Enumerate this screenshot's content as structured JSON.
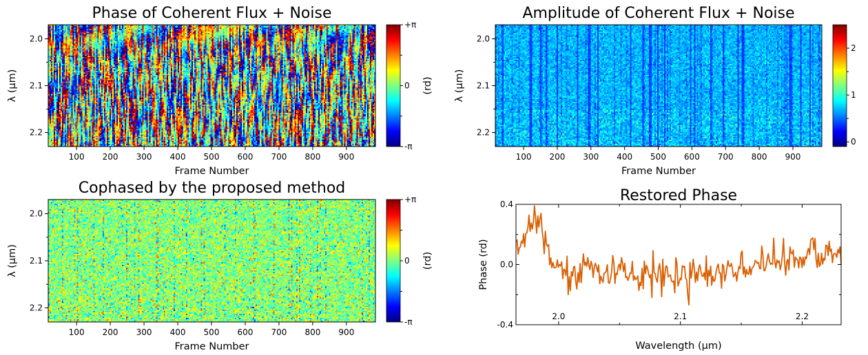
{
  "colorscale": [
    "#00007f",
    "#0000ff",
    "#007fff",
    "#00ffff",
    "#7fff7f",
    "#ffff00",
    "#ff7f00",
    "#ff0000",
    "#7f0000"
  ],
  "line_color": "#d95f02",
  "chart_data": [
    {
      "id": "phase_noisy",
      "type": "heatmap",
      "title": "Phase of Coherent Flux + Noise",
      "xlabel": "Frame Number",
      "ylabel": "λ (µm)",
      "xlim": [
        16,
        986
      ],
      "ylim": [
        1.97,
        2.23
      ],
      "xticks": [
        "100",
        "200",
        "300",
        "400",
        "500",
        "600",
        "700",
        "800",
        "900"
      ],
      "yticks": [
        "2.0",
        "2.1",
        "2.2"
      ],
      "colorbar": {
        "label": "(rd)",
        "range": [
          -3.1416,
          3.1416
        ],
        "ticks": [
          "+π",
          "0",
          "-π"
        ]
      },
      "description": "Random phase pattern spanning full range with diagonal fringes drifting across frames"
    },
    {
      "id": "amplitude_noisy",
      "type": "heatmap",
      "title": "Amplitude of Coherent Flux + Noise",
      "xlabel": "Frame Number",
      "ylabel": "λ (µm)",
      "xlim": [
        16,
        986
      ],
      "ylim": [
        1.97,
        2.23
      ],
      "xticks": [
        "100",
        "200",
        "300",
        "400",
        "500",
        "600",
        "700",
        "800",
        "900"
      ],
      "yticks": [
        "2.0",
        "2.1",
        "2.2"
      ],
      "colorbar": {
        "label": "",
        "range": [
          -0.1,
          2.5
        ],
        "ticks": [
          "2",
          "1",
          "0"
        ]
      },
      "description": "Mostly low amplitude (blue, ~0.5-0.8) with dark vertical stripes at certain frames"
    },
    {
      "id": "cophased",
      "type": "heatmap",
      "title": "Cophased by the proposed method",
      "xlabel": "Frame Number",
      "ylabel": "λ (µm)",
      "xlim": [
        16,
        986
      ],
      "ylim": [
        1.97,
        2.23
      ],
      "xticks": [
        "100",
        "200",
        "300",
        "400",
        "500",
        "600",
        "700",
        "800",
        "900"
      ],
      "yticks": [
        "2.0",
        "2.1",
        "2.2"
      ],
      "colorbar": {
        "label": "(rd)",
        "range": [
          -3.1416,
          3.1416
        ],
        "ticks": [
          "+π",
          "0",
          "-π"
        ]
      },
      "description": "Phase close to zero everywhere (green/cyan) with mild noise"
    },
    {
      "id": "restored_phase",
      "type": "line",
      "title": "Restored Phase",
      "xlabel": "Wavelength (µm)",
      "ylabel": "Phase (rd)",
      "xlim": [
        1.965,
        2.232
      ],
      "ylim": [
        -0.4,
        0.4
      ],
      "xticks": [
        "2.0",
        "2.1",
        "2.2"
      ],
      "yticks": [
        "0.4",
        "0.0",
        "-0.4"
      ],
      "anchors_x": [
        1.965,
        1.97,
        1.975,
        1.98,
        1.985,
        1.99,
        1.995,
        2.0,
        2.005,
        2.01,
        2.015,
        2.02,
        2.03,
        2.04,
        2.05,
        2.06,
        2.07,
        2.08,
        2.09,
        2.1,
        2.11,
        2.12,
        2.13,
        2.14,
        2.15,
        2.16,
        2.17,
        2.18,
        2.19,
        2.2,
        2.21,
        2.22,
        2.232
      ],
      "anchors_y": [
        0.15,
        0.17,
        0.25,
        0.32,
        0.28,
        0.12,
        0.02,
        -0.02,
        -0.06,
        -0.08,
        -0.1,
        -0.05,
        -0.04,
        -0.04,
        -0.05,
        -0.06,
        -0.06,
        -0.07,
        -0.06,
        -0.06,
        -0.06,
        -0.06,
        -0.05,
        -0.04,
        -0.02,
        -0.01,
        0.0,
        0.02,
        0.04,
        0.05,
        0.06,
        0.07,
        0.08
      ],
      "noise_amplitude": 0.06,
      "samples": 300
    }
  ]
}
